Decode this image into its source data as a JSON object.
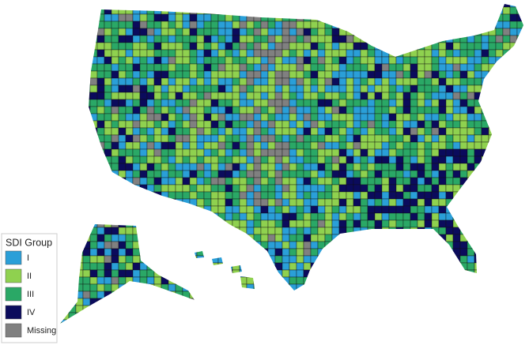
{
  "legend": {
    "title": "SDI Group",
    "items": [
      {
        "label": "I",
        "color": "#2a9fd8"
      },
      {
        "label": "II",
        "color": "#8fd14f"
      },
      {
        "label": "III",
        "color": "#2aa866"
      },
      {
        "label": "IV",
        "color": "#0b0b5c"
      },
      {
        "label": "Missing",
        "color": "#808080"
      }
    ]
  }
}
